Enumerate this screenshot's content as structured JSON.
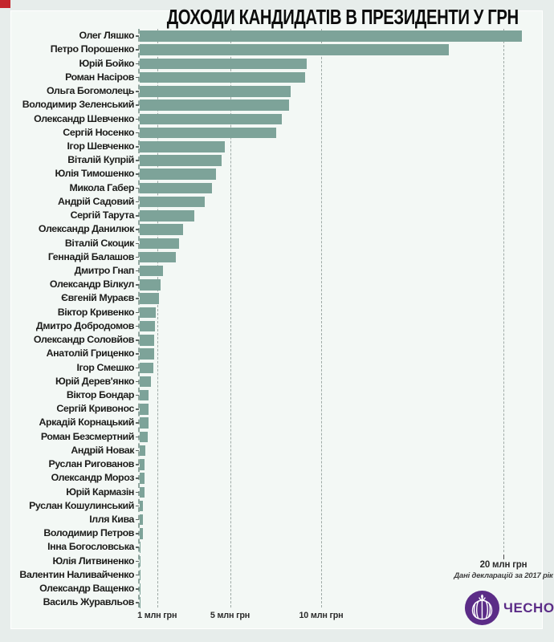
{
  "title_text": "ДОХОДИ КАНДИДАТІВ В ПРЕЗИДЕНТИ У ГРН",
  "colors": {
    "bar": "#7da399",
    "page_bg": "#e7edeb",
    "panel_bg": "#f3f8f5",
    "grid": "#9faaa6",
    "axis_dash": "#93a8a1",
    "title": "#0d0d0d",
    "label": "#1d1d1b",
    "logo_purple": "#5b2c87",
    "corner_red": "#c4262d"
  },
  "axis": {
    "unit": "млн грн",
    "ticks": [
      {
        "value": 1,
        "label": "1 млн грн"
      },
      {
        "value": 5,
        "label": "5 млн грн"
      },
      {
        "value": 10,
        "label": "10 млн грн"
      },
      {
        "value": 20,
        "label": "20 млн грн"
      }
    ]
  },
  "note": {
    "tick20_label": "20 млн грн",
    "source": "Дані декларацій за 2017 рік"
  },
  "logo": {
    "text": "ЧЕСНО"
  },
  "chart_data": {
    "type": "bar",
    "orientation": "horizontal",
    "title": "ДОХОДИ КАНДИДАТІВ В ПРЕЗИДЕНТИ У ГРН",
    "xlabel": "млн грн",
    "xlim": [
      0,
      22
    ],
    "grid": "dashed-vertical",
    "legend": "none",
    "source": "Дані декларацій за 2017 рік",
    "categories": [
      "Олег Ляшко",
      "Петро Порошенко",
      "Юрій Бойко",
      "Роман Насіров",
      "Ольга Богомолець",
      "Володимир Зеленський",
      "Олександр Шевченко",
      "Сергій Носенко",
      "Ігор Шевченко",
      "Віталій Купрій",
      "Юлія Тимошенко",
      "Микола Габер",
      "Андрій Садовий",
      "Сергій Тарута",
      "Олександр Данилюк",
      "Віталій Скоцик",
      "Геннадій Балашов",
      "Дмитро Гнап",
      "Олександр Вілкул",
      "Євгеній Мураєв",
      "Віктор Кривенко",
      "Дмитро Добродомов",
      "Олександр Соловйов",
      "Анатолій Гриценко",
      "Ігор Смешко",
      "Юрій Дерев'янко",
      "Віктор Бондар",
      "Сергій Кривонос",
      "Аркадій Корнацький",
      "Роман Безсмертний",
      "Андрій Новак",
      "Руслан Ригованов",
      "Олександр Мороз",
      "Юрій Кармазін",
      "Руслан Кошулинський",
      "Ілля Кива",
      "Володимир Петров",
      "Інна Богословська",
      "Юлія Литвиненко",
      "Валентин Наливайченко",
      "Олександр Ващенко",
      "Василь Журавльов"
    ],
    "values": [
      21.0,
      17.0,
      9.2,
      9.1,
      8.3,
      8.2,
      7.8,
      7.5,
      4.7,
      4.5,
      4.2,
      4.0,
      3.6,
      3.0,
      2.4,
      2.2,
      2.0,
      1.3,
      1.15,
      1.1,
      0.9,
      0.85,
      0.82,
      0.8,
      0.78,
      0.65,
      0.52,
      0.5,
      0.5,
      0.45,
      0.33,
      0.3,
      0.28,
      0.27,
      0.22,
      0.2,
      0.2,
      0.05,
      0.04,
      0.03,
      0.015,
      0.01
    ],
    "units": "млн грн"
  }
}
